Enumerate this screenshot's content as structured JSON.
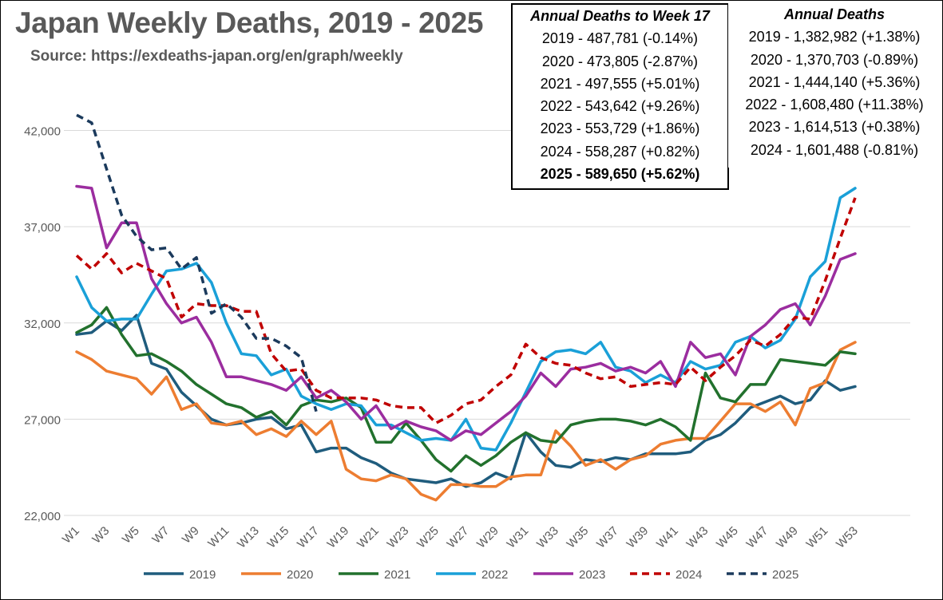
{
  "title": "Japan Weekly Deaths, 2019 - 2025",
  "subtitle": "Source: https://exdeaths-japan.org/en/graph/weekly",
  "week17_box": {
    "header": "Annual Deaths to Week 17",
    "rows": [
      "2019 - 487,781 (-0.14%)",
      "2020 - 473,805 (-2.87%)",
      "2021 - 497,555 (+5.01%)",
      "2022 - 543,642 (+9.26%)",
      "2023 - 553,729 (+1.86%)",
      "2024 - 558,287 (+0.82%)",
      "2025 - 589,650 (+5.62%)"
    ]
  },
  "annual_box": {
    "header": "Annual Deaths",
    "rows": [
      "2019 - 1,382,982 (+1.38%)",
      "2020 - 1,370,703 (-0.89%)",
      "2021 - 1,444,140 (+5.36%)",
      "2022 - 1,608,480 (+11.38%)",
      "2023 - 1,614,513 (+0.38%)",
      "2024 - 1,601,488 (-0.81%)"
    ]
  },
  "chart_data": {
    "type": "line",
    "title": "Japan Weekly Deaths, 2019 - 2025",
    "xlabel": "",
    "ylabel": "",
    "ylim": [
      22000,
      43000
    ],
    "yticks": [
      22000,
      27000,
      32000,
      37000,
      42000
    ],
    "ytick_labels": [
      "22,000",
      "27,000",
      "32,000",
      "37,000",
      "42,000"
    ],
    "xtick_labels": [
      "W1",
      "W3",
      "W5",
      "W7",
      "W9",
      "W11",
      "W13",
      "W15",
      "W17",
      "W19",
      "W21",
      "W23",
      "W25",
      "W27",
      "W29",
      "W31",
      "W33",
      "W35",
      "W37",
      "W39",
      "W41",
      "W43",
      "W45",
      "W47",
      "W49",
      "W51",
      "W53"
    ],
    "grid": "horizontal",
    "legend": "bottom",
    "series": [
      {
        "name": "2019",
        "color": "#1f5c7d",
        "dashed": false,
        "values": [
          31400,
          31500,
          32100,
          31600,
          32400,
          29900,
          29600,
          28400,
          27700,
          27000,
          26700,
          26800,
          27000,
          27100,
          26500,
          26700,
          25300,
          25500,
          25500,
          25000,
          24700,
          24200,
          23900,
          23800,
          23700,
          23900,
          23500,
          23700,
          24200,
          23900,
          26300,
          25300,
          24600,
          24500,
          24900,
          24800,
          25000,
          24900,
          25200,
          25200,
          25200,
          25300,
          25900,
          26200,
          26800,
          27600,
          27900,
          28200,
          27800,
          28000,
          29000,
          28500,
          28700
        ]
      },
      {
        "name": "2020",
        "color": "#ed7d31",
        "dashed": false,
        "values": [
          30500,
          30100,
          29500,
          29300,
          29100,
          28300,
          29200,
          27500,
          27800,
          26800,
          26700,
          26900,
          26200,
          26500,
          26100,
          26900,
          26200,
          26900,
          24400,
          23900,
          23800,
          24100,
          23900,
          23100,
          22800,
          23600,
          23600,
          23500,
          23500,
          24000,
          24100,
          24100,
          26400,
          25600,
          24600,
          24900,
          24400,
          24900,
          25100,
          25700,
          25900,
          26000,
          26000,
          26900,
          27800,
          27800,
          27400,
          27900,
          26700,
          28600,
          28900,
          30600,
          31000
        ]
      },
      {
        "name": "2021",
        "color": "#22712d",
        "dashed": false,
        "values": [
          31500,
          31900,
          32800,
          31400,
          30300,
          30400,
          30000,
          29500,
          28800,
          28300,
          27800,
          27600,
          27100,
          27400,
          26700,
          27700,
          28000,
          27900,
          28100,
          27600,
          25800,
          25800,
          26800,
          25900,
          24900,
          24300,
          25100,
          24600,
          25100,
          25800,
          26300,
          25900,
          25800,
          26700,
          26900,
          27000,
          27000,
          26900,
          26700,
          27000,
          26600,
          25900,
          29400,
          28100,
          27900,
          28800,
          28800,
          30100,
          30000,
          29900,
          29800,
          30500,
          30400
        ]
      },
      {
        "name": "2022",
        "color": "#1aa0d8",
        "dashed": false,
        "values": [
          34400,
          32800,
          32100,
          32200,
          32200,
          33500,
          34700,
          34800,
          35100,
          34100,
          32000,
          30400,
          30300,
          29300,
          29600,
          28200,
          27800,
          27500,
          27800,
          27700,
          26700,
          26700,
          26300,
          25900,
          26000,
          25900,
          27000,
          25500,
          25400,
          26800,
          28400,
          30000,
          30500,
          30600,
          30400,
          31000,
          29700,
          29500,
          28900,
          29300,
          28900,
          30000,
          29600,
          29800,
          31000,
          31300,
          30700,
          31100,
          32200,
          34400,
          35200,
          38500,
          39000
        ]
      },
      {
        "name": "2023",
        "color": "#9b2d9f",
        "dashed": false,
        "values": [
          39100,
          39000,
          35900,
          37200,
          37200,
          34300,
          33000,
          32000,
          32300,
          31000,
          29200,
          29200,
          29000,
          28800,
          28500,
          29200,
          28100,
          28500,
          27900,
          27000,
          27700,
          26500,
          26900,
          26600,
          26400,
          25900,
          26400,
          26200,
          26800,
          27400,
          28200,
          29400,
          28700,
          29600,
          29700,
          29900,
          29500,
          29700,
          29400,
          30000,
          28700,
          31000,
          30200,
          30400,
          29300,
          31300,
          31900,
          32700,
          33000,
          31900,
          33400,
          35300,
          35600
        ]
      },
      {
        "name": "2024",
        "color": "#c00000",
        "dashed": true,
        "values": [
          35500,
          34800,
          35600,
          34600,
          35100,
          34700,
          34300,
          32300,
          33000,
          32900,
          32900,
          32600,
          32600,
          30400,
          29500,
          29600,
          28500,
          28100,
          28100,
          28100,
          28000,
          27700,
          27600,
          27600,
          26800,
          27200,
          27800,
          28000,
          28700,
          29300,
          30900,
          30200,
          29900,
          29800,
          29400,
          29100,
          29200,
          28700,
          28800,
          28900,
          28800,
          29700,
          29000,
          29700,
          30300,
          31100,
          30800,
          31400,
          32300,
          32200,
          34200,
          36400,
          38500
        ]
      },
      {
        "name": "2025",
        "color": "#1b3a5c",
        "dashed": true,
        "values": [
          42800,
          42400,
          40000,
          37600,
          36500,
          35800,
          35900,
          34800,
          35400,
          32500,
          33000,
          32300,
          31200,
          31200,
          30800,
          30200,
          27400
        ]
      }
    ]
  }
}
